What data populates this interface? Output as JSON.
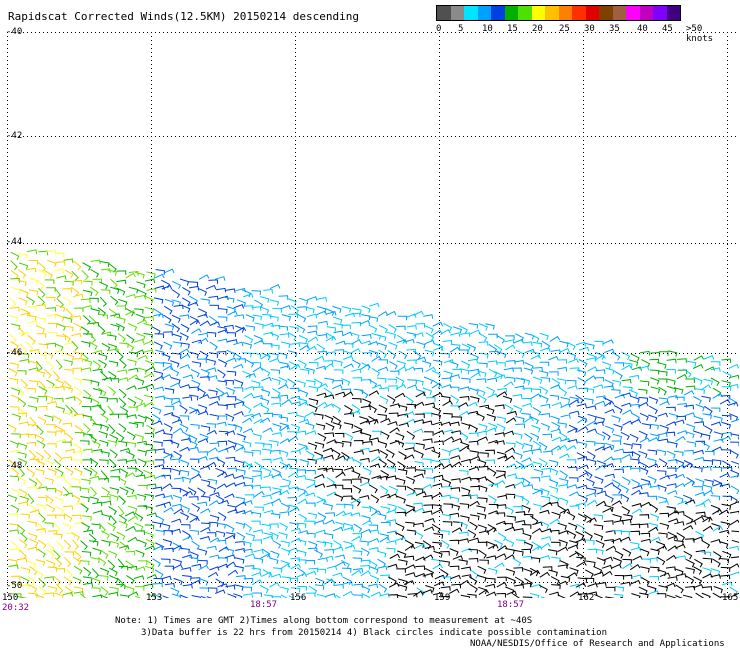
{
  "title": "Rapidscat Corrected Winds(12.5KM) 20150214 descending",
  "legend": {
    "colors": [
      "#505050",
      "#8a8a8a",
      "#00e5ff",
      "#00a0ff",
      "#0040e0",
      "#00b000",
      "#50e000",
      "#ffff00",
      "#ffc000",
      "#ff8000",
      "#ff3000",
      "#e00000",
      "#804000",
      "#a06040",
      "#ff00ff",
      "#c000c0",
      "#8000ff",
      "#400080"
    ],
    "labels": [
      "0",
      "5",
      "10",
      "15",
      "20",
      "25",
      "30",
      "35",
      "40",
      "45",
      ">50 knots"
    ],
    "unit": "knots"
  },
  "lat_labels": [
    "-40",
    "-42",
    "-44",
    "-46",
    "-48",
    "-50"
  ],
  "lon_labels": [
    "150",
    "153",
    "156",
    "159",
    "162",
    "165"
  ],
  "time_labels": [
    "20:32",
    "18:57",
    "18:57"
  ],
  "notes": {
    "line1": "Note: 1) Times are GMT 2)Times along bottom correspond to measurement at ~40S",
    "line2": "3)Data buffer is 22 hrs from 20150214 4) Black circles indicate possible contamination",
    "line3": "NOAA/NESDIS/Office of Research and Applications"
  }
}
